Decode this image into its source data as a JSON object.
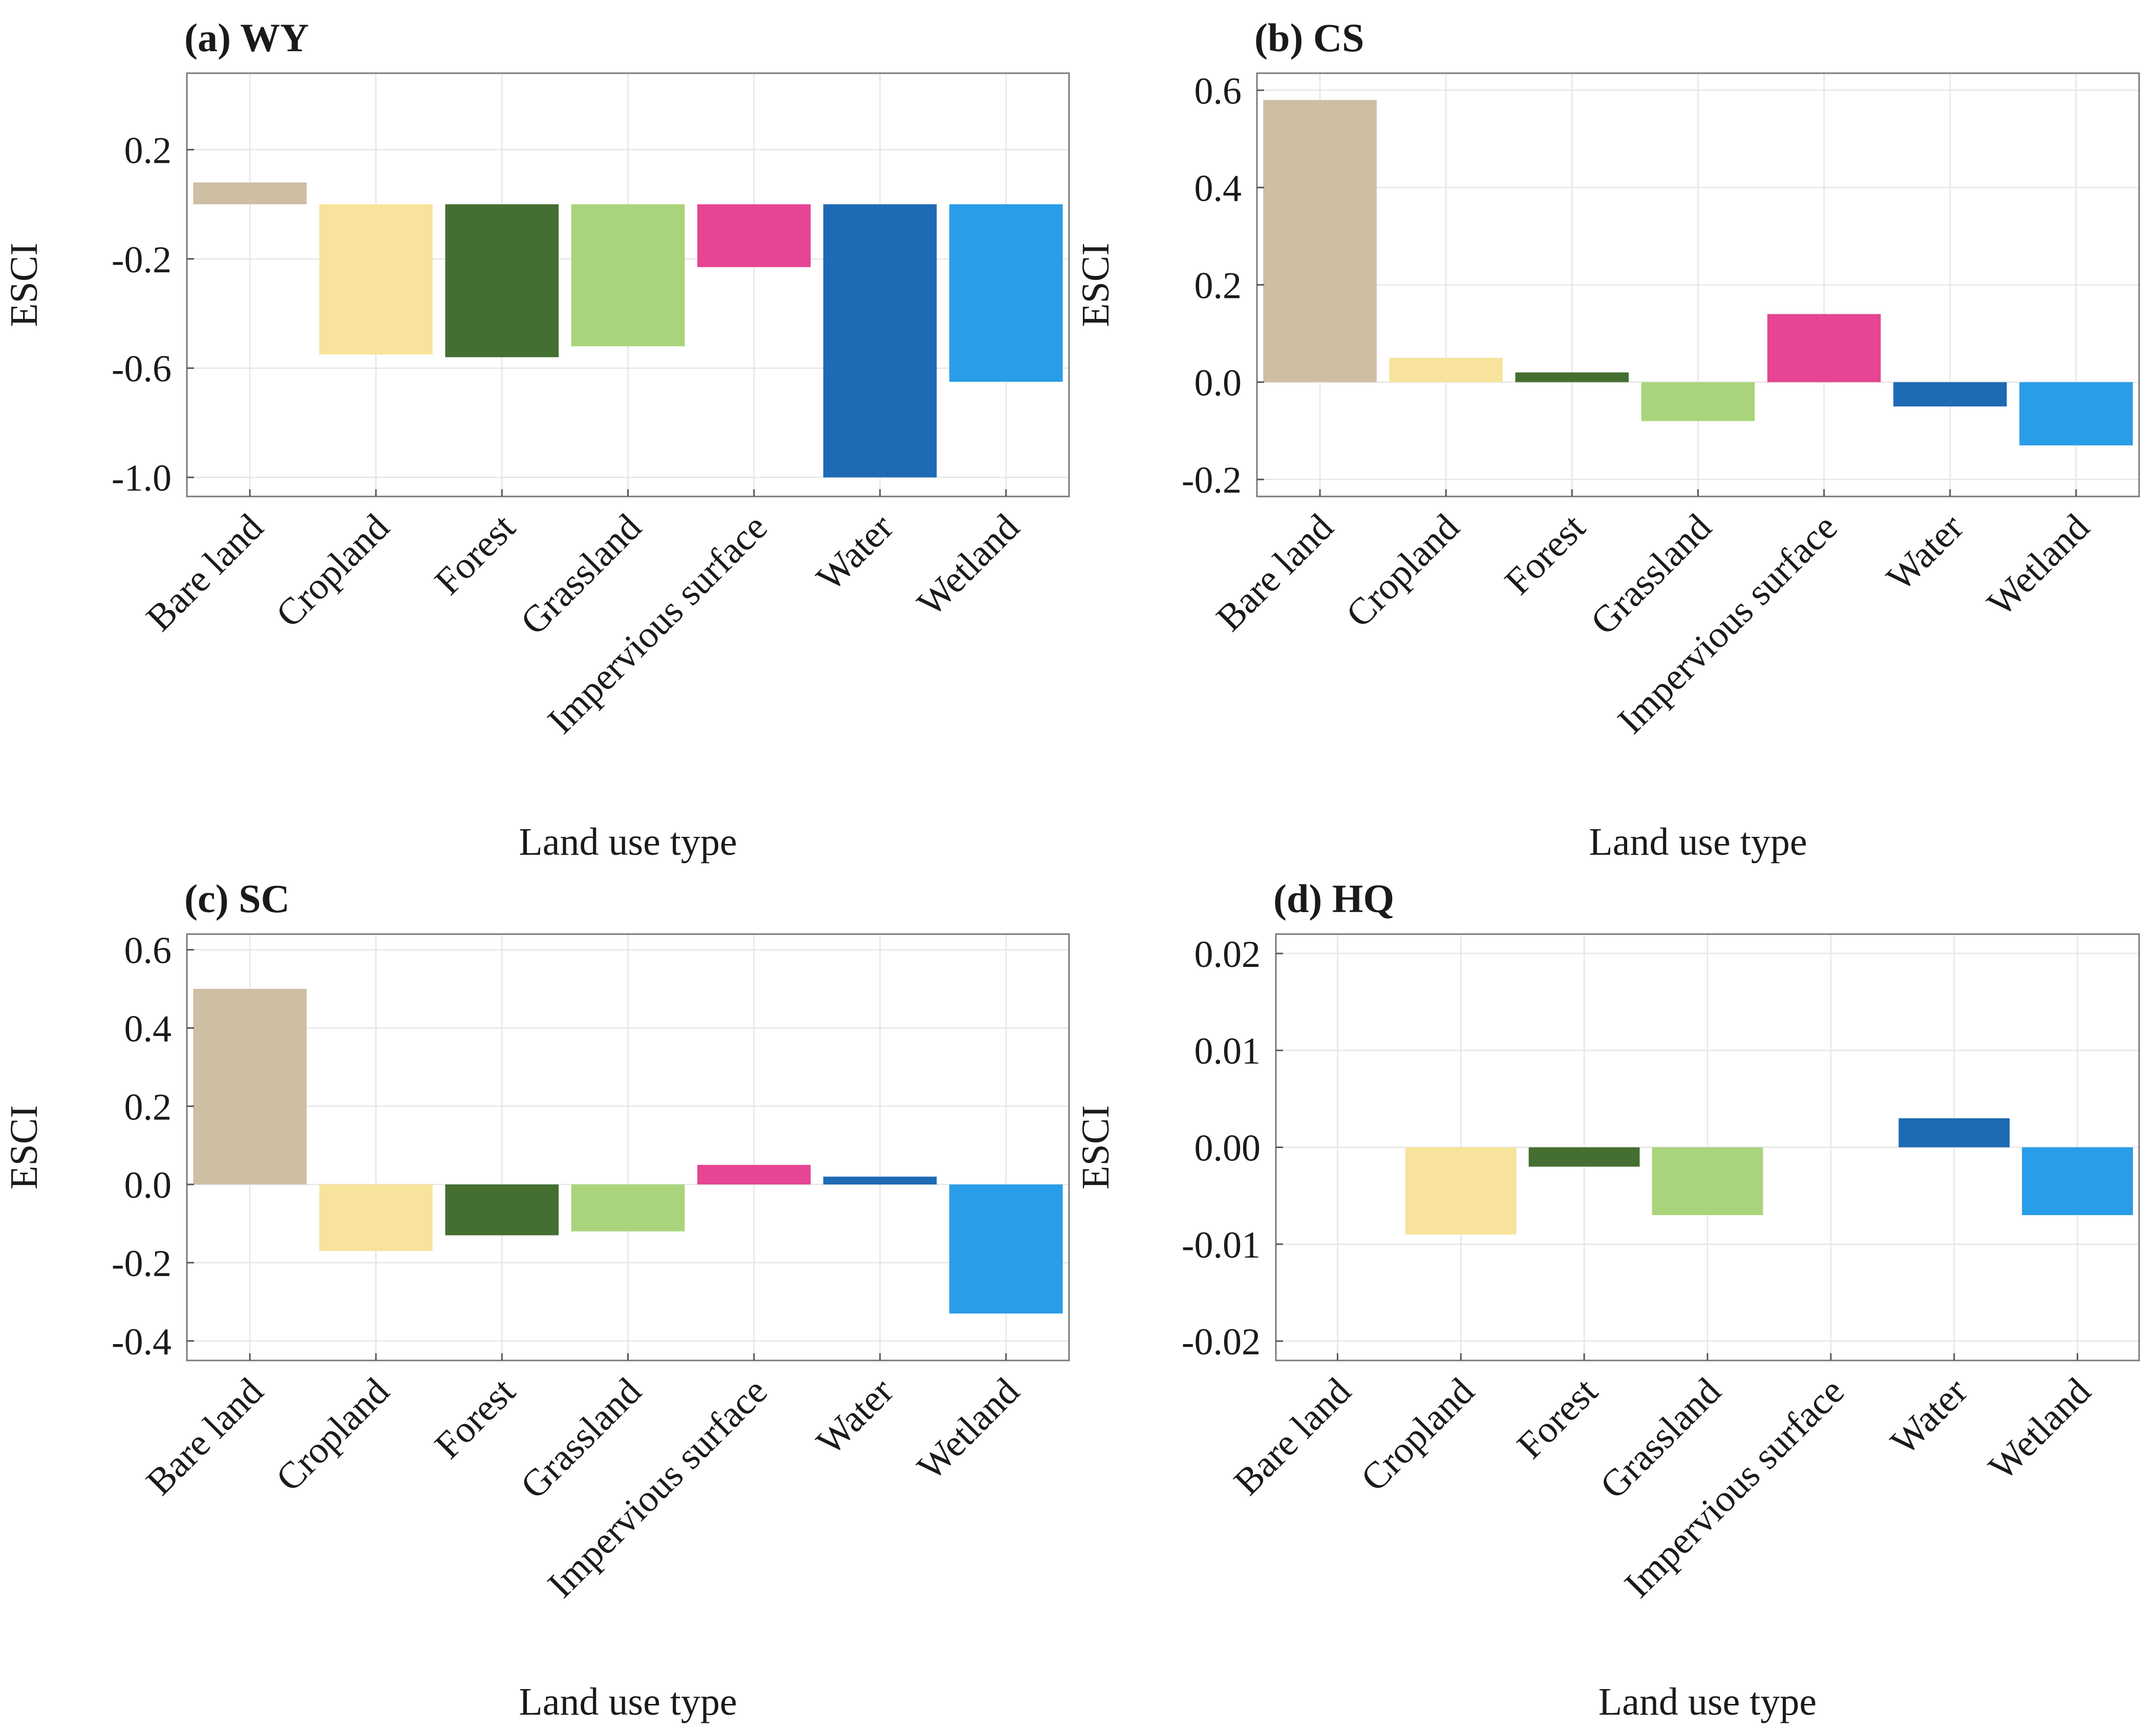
{
  "figure": {
    "categories": [
      "Bare land",
      "Cropland",
      "Forest",
      "Grassland",
      "Impervious surface",
      "Water",
      "Wetland"
    ],
    "colors": {
      "Bare land": "#cebea4",
      "Cropland": "#f8e39c",
      "Forest": "#446f31",
      "Grassland": "#aad47b",
      "Impervious surface": "#e54593",
      "Water": "#1e6bb4",
      "Wetland": "#2a9de8"
    }
  },
  "chart_data": [
    {
      "type": "bar",
      "title": "(a) WY",
      "xlabel": "Land use type",
      "ylabel": "ESCI",
      "ylim": [
        -1.07,
        0.48
      ],
      "yticks": [
        0.2,
        -0.2,
        -0.6,
        -1.0
      ],
      "ytick_labels": [
        "0.2",
        "-0.2",
        "-0.6",
        "-1.0"
      ],
      "categories": [
        "Bare land",
        "Cropland",
        "Forest",
        "Grassland",
        "Impervious surface",
        "Water",
        "Wetland"
      ],
      "values": [
        0.08,
        -0.55,
        -0.56,
        -0.52,
        -0.23,
        -1.0,
        -0.65
      ]
    },
    {
      "type": "bar",
      "title": "(b) CS",
      "xlabel": "Land use type",
      "ylabel": "ESCI",
      "ylim": [
        -0.235,
        0.635
      ],
      "yticks": [
        0.6,
        0.4,
        0.2,
        0.0,
        -0.2
      ],
      "ytick_labels": [
        "0.6",
        "0.4",
        "0.2",
        "0.0",
        "-0.2"
      ],
      "categories": [
        "Bare land",
        "Cropland",
        "Forest",
        "Grassland",
        "Impervious surface",
        "Water",
        "Wetland"
      ],
      "values": [
        0.58,
        0.05,
        0.02,
        -0.08,
        0.14,
        -0.05,
        -0.13
      ]
    },
    {
      "type": "bar",
      "title": "(c) SC",
      "xlabel": "Land use type",
      "ylabel": "ESCI",
      "ylim": [
        -0.45,
        0.64
      ],
      "yticks": [
        0.6,
        0.4,
        0.2,
        0.0,
        -0.2,
        -0.4
      ],
      "ytick_labels": [
        "0.6",
        "0.4",
        "0.2",
        "0.0",
        "-0.2",
        "-0.4"
      ],
      "categories": [
        "Bare land",
        "Cropland",
        "Forest",
        "Grassland",
        "Impervious surface",
        "Water",
        "Wetland"
      ],
      "values": [
        0.5,
        -0.17,
        -0.13,
        -0.12,
        0.05,
        0.02,
        -0.33
      ]
    },
    {
      "type": "bar",
      "title": "(d) HQ",
      "xlabel": "Land use type",
      "ylabel": "ESCI",
      "ylim": [
        -0.022,
        0.022
      ],
      "yticks": [
        0.02,
        0.01,
        0.0,
        -0.01,
        -0.02
      ],
      "ytick_labels": [
        "0.02",
        "0.01",
        "0.00",
        "-0.01",
        "-0.02"
      ],
      "categories": [
        "Bare land",
        "Cropland",
        "Forest",
        "Grassland",
        "Impervious surface",
        "Water",
        "Wetland"
      ],
      "values": [
        0.0,
        -0.009,
        -0.002,
        -0.007,
        0.0,
        0.003,
        -0.007
      ]
    }
  ]
}
